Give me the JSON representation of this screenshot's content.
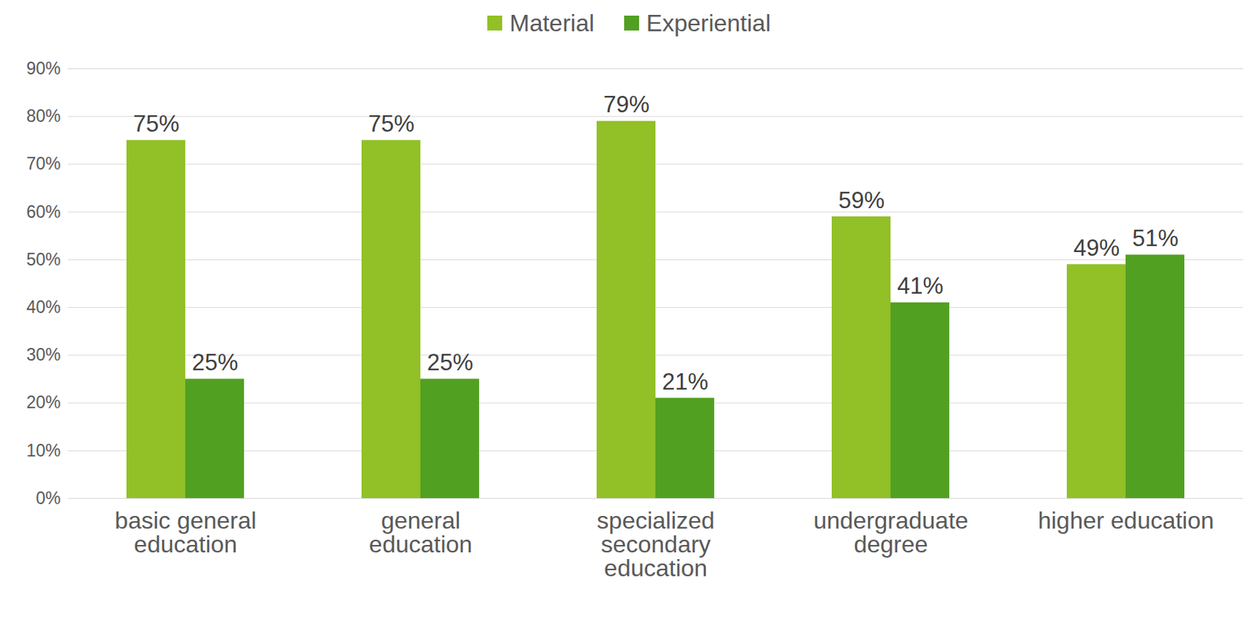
{
  "chart_data": {
    "type": "bar",
    "categories": [
      "basic general education",
      "general education",
      "specialized secondary education",
      "undergraduate degree",
      "higher education"
    ],
    "series": [
      {
        "name": "Material",
        "color": "#92c027",
        "values": [
          75,
          75,
          79,
          59,
          49
        ],
        "value_labels": [
          "75%",
          "75%",
          "79%",
          "59%",
          "49%"
        ]
      },
      {
        "name": "Experiential",
        "color": "#52a022",
        "values": [
          25,
          25,
          21,
          41,
          51
        ],
        "value_labels": [
          "25%",
          "25%",
          "21%",
          "41%",
          "51%"
        ]
      }
    ],
    "ylim": [
      0,
      90
    ],
    "yticks": [
      {
        "value": 0,
        "label": "0%"
      },
      {
        "value": 10,
        "label": "10%"
      },
      {
        "value": 20,
        "label": "20%"
      },
      {
        "value": 30,
        "label": "30%"
      },
      {
        "value": 40,
        "label": "40%"
      },
      {
        "value": 50,
        "label": "50%"
      },
      {
        "value": 60,
        "label": "60%"
      },
      {
        "value": 70,
        "label": "70%"
      },
      {
        "value": 80,
        "label": "80%"
      },
      {
        "value": 90,
        "label": "90%"
      }
    ],
    "grid": true,
    "legend": "top",
    "data_labels": true
  }
}
